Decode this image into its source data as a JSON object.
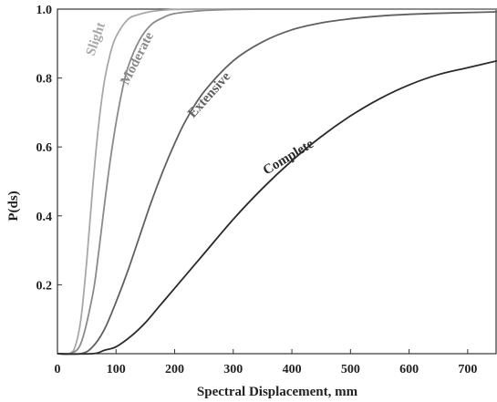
{
  "chart_data": {
    "type": "line",
    "title": "",
    "xlabel": "Spectral Displacement, mm",
    "ylabel": "P(ds)",
    "xlim": [
      0,
      750
    ],
    "ylim": [
      0,
      1.0
    ],
    "x_ticks": [
      "0",
      "100",
      "200",
      "300",
      "400",
      "500",
      "600",
      "700"
    ],
    "y_ticks": [
      "0.2",
      "0.4",
      "0.6",
      "0.8",
      "1.0"
    ],
    "grid": false,
    "legend": "none (curves labelled inline)",
    "series": [
      {
        "name": "Slight",
        "color": "#a8a8a8",
        "x": [
          0,
          20,
          30,
          40,
          50,
          60,
          70,
          80,
          90,
          100,
          120,
          140,
          160,
          180,
          200,
          250,
          300,
          750
        ],
        "y": [
          0,
          0.0,
          0.02,
          0.1,
          0.27,
          0.48,
          0.66,
          0.79,
          0.87,
          0.92,
          0.97,
          0.985,
          0.993,
          0.997,
          0.999,
          1.0,
          1.0,
          1.0
        ]
      },
      {
        "name": "Moderate",
        "color": "#8a8a8a",
        "x": [
          0,
          20,
          40,
          60,
          70,
          80,
          90,
          100,
          110,
          120,
          140,
          160,
          180,
          200,
          250,
          300,
          350,
          400,
          750
        ],
        "y": [
          0,
          0.0,
          0.03,
          0.17,
          0.29,
          0.43,
          0.56,
          0.67,
          0.76,
          0.83,
          0.91,
          0.955,
          0.975,
          0.987,
          0.996,
          0.999,
          1.0,
          1.0,
          1.0
        ]
      },
      {
        "name": "Extensive",
        "color": "#606060",
        "x": [
          0,
          40,
          60,
          80,
          100,
          120,
          140,
          160,
          180,
          200,
          220,
          250,
          300,
          350,
          400,
          450,
          500,
          550,
          600,
          650,
          700,
          750
        ],
        "y": [
          0,
          0.0,
          0.02,
          0.07,
          0.15,
          0.24,
          0.34,
          0.44,
          0.53,
          0.61,
          0.68,
          0.76,
          0.85,
          0.905,
          0.94,
          0.96,
          0.972,
          0.98,
          0.985,
          0.988,
          0.99,
          0.992
        ]
      },
      {
        "name": "Complete",
        "color": "#2a2a2a",
        "x": [
          0,
          60,
          80,
          100,
          125,
          150,
          175,
          200,
          250,
          300,
          350,
          400,
          450,
          500,
          550,
          600,
          650,
          700,
          750
        ],
        "y": [
          0,
          0.0,
          0.01,
          0.02,
          0.05,
          0.09,
          0.14,
          0.19,
          0.29,
          0.39,
          0.48,
          0.56,
          0.63,
          0.69,
          0.74,
          0.78,
          0.81,
          0.83,
          0.85
        ]
      }
    ],
    "annotations": [
      {
        "text": "Slight",
        "series": "Slight"
      },
      {
        "text": "Moderate",
        "series": "Moderate"
      },
      {
        "text": "Extensive",
        "series": "Extensive"
      },
      {
        "text": "Complete",
        "series": "Complete"
      }
    ]
  }
}
